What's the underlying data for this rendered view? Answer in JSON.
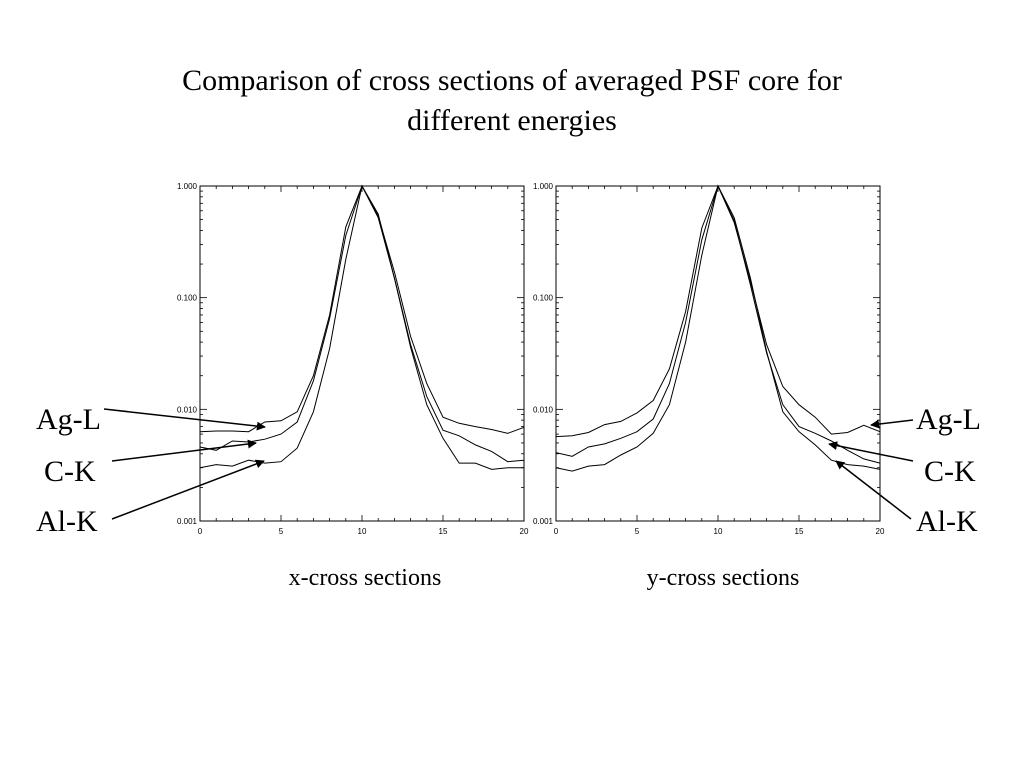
{
  "slide": {
    "title_line1": "Comparison of cross sections of averaged PSF core for",
    "title_line2": "different energies",
    "left_labels": [
      "Ag-L",
      "C-K",
      "Al-K"
    ],
    "right_labels": [
      "Ag-L",
      "C-K",
      "Al-K"
    ]
  },
  "chart_data": [
    {
      "type": "line",
      "xlabel": "x-cross sections",
      "xlim": [
        0,
        20
      ],
      "ylim": [
        0.001,
        1.0
      ],
      "yscale": "log",
      "xticks": [
        "0",
        "5",
        "10",
        "15",
        "20"
      ],
      "yticks": [
        "0.001",
        "0.010",
        "0.100",
        "1.000"
      ],
      "x": [
        0,
        1,
        2,
        3,
        4,
        5,
        6,
        7,
        8,
        9,
        10,
        11,
        12,
        13,
        14,
        15,
        16,
        17,
        18,
        19,
        20
      ],
      "series": [
        {
          "name": "Ag-L",
          "values": [
            0.0063,
            0.0064,
            0.0064,
            0.0063,
            0.0077,
            0.0079,
            0.0095,
            0.02,
            0.07,
            0.43,
            1.0,
            0.54,
            0.17,
            0.045,
            0.017,
            0.0085,
            0.0075,
            0.007,
            0.0066,
            0.0061,
            0.0069
          ]
        },
        {
          "name": "C-K",
          "values": [
            0.0046,
            0.0043,
            0.0052,
            0.0051,
            0.0054,
            0.006,
            0.0077,
            0.018,
            0.065,
            0.36,
            1.0,
            0.52,
            0.15,
            0.038,
            0.013,
            0.0065,
            0.0058,
            0.0048,
            0.0042,
            0.0034,
            0.0035
          ]
        },
        {
          "name": "Al-K",
          "values": [
            0.003,
            0.0032,
            0.0031,
            0.0035,
            0.0033,
            0.0034,
            0.0045,
            0.0095,
            0.035,
            0.22,
            1.0,
            0.56,
            0.15,
            0.036,
            0.011,
            0.0055,
            0.0033,
            0.0033,
            0.0029,
            0.003,
            0.003
          ]
        }
      ]
    },
    {
      "type": "line",
      "xlabel": "y-cross sections",
      "xlim": [
        0,
        20
      ],
      "ylim": [
        0.001,
        1.0
      ],
      "yscale": "log",
      "xticks": [
        "0",
        "5",
        "10",
        "15",
        "20"
      ],
      "yticks": [
        "0.001",
        "0.010",
        "0.100",
        "1.000"
      ],
      "x": [
        0,
        1,
        2,
        3,
        4,
        5,
        6,
        7,
        8,
        9,
        10,
        11,
        12,
        13,
        14,
        15,
        16,
        17,
        18,
        19,
        20
      ],
      "series": [
        {
          "name": "Ag-L",
          "values": [
            0.0057,
            0.0058,
            0.0062,
            0.0073,
            0.0078,
            0.0093,
            0.012,
            0.023,
            0.075,
            0.42,
            1.0,
            0.47,
            0.14,
            0.038,
            0.016,
            0.011,
            0.0085,
            0.006,
            0.0062,
            0.0072,
            0.0063
          ]
        },
        {
          "name": "C-K",
          "values": [
            0.0041,
            0.0038,
            0.0046,
            0.0049,
            0.0055,
            0.0063,
            0.0082,
            0.017,
            0.06,
            0.33,
            1.0,
            0.49,
            0.13,
            0.032,
            0.011,
            0.007,
            0.0061,
            0.0052,
            0.0043,
            0.0036,
            0.0033
          ]
        },
        {
          "name": "Al-K",
          "values": [
            0.003,
            0.0028,
            0.0031,
            0.0032,
            0.0039,
            0.0046,
            0.0061,
            0.011,
            0.04,
            0.24,
            1.0,
            0.52,
            0.15,
            0.033,
            0.0095,
            0.0063,
            0.0048,
            0.0035,
            0.0032,
            0.0031,
            0.0029
          ]
        }
      ]
    }
  ]
}
